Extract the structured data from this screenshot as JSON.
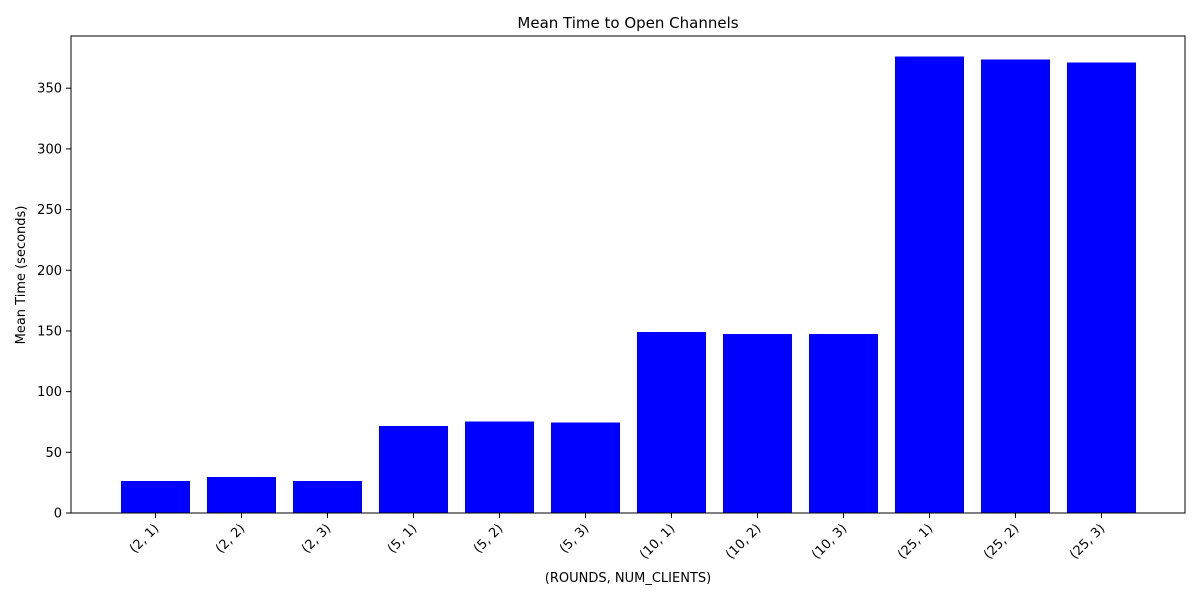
{
  "chart_data": {
    "type": "bar",
    "title": "Mean Time to Open Channels",
    "xlabel": "(ROUNDS, NUM_CLIENTS)",
    "ylabel": "Mean Time (seconds)",
    "categories": [
      "(2, 1)",
      "(2, 2)",
      "(2, 3)",
      "(5, 1)",
      "(5, 2)",
      "(5, 3)",
      "(10, 1)",
      "(10, 2)",
      "(10, 3)",
      "(25, 1)",
      "(25, 2)",
      "(25, 3)"
    ],
    "values": [
      26.5,
      29.5,
      26.5,
      71.5,
      75.5,
      74.5,
      149,
      147.5,
      147.5,
      376,
      373.5,
      371
    ],
    "ylim": [
      0,
      393
    ],
    "yticks": [
      0,
      50,
      100,
      150,
      200,
      250,
      300,
      350
    ],
    "bar_color": "#0000ff",
    "grid": false,
    "legend": false
  }
}
